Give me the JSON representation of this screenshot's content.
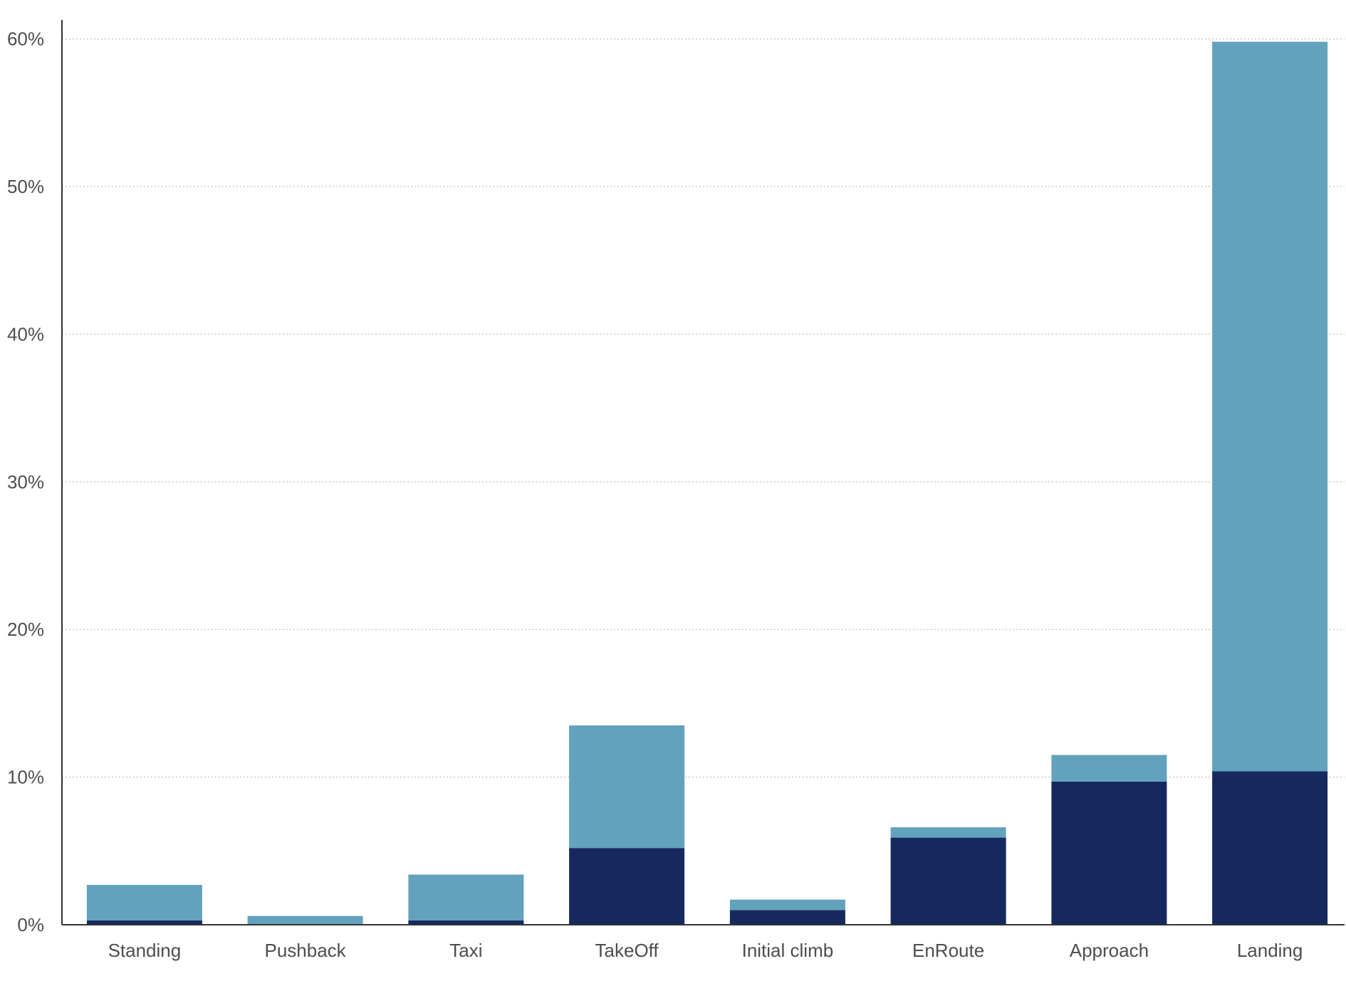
{
  "chart_data": {
    "type": "bar",
    "stacked": true,
    "title": "",
    "xlabel": "",
    "ylabel": "",
    "ylim": [
      0,
      62
    ],
    "y_ticks": [
      0,
      10,
      20,
      30,
      40,
      50,
      60
    ],
    "y_tick_labels": [
      "0%",
      "10%",
      "20%",
      "30%",
      "40%",
      "50%",
      "60%"
    ],
    "grid": true,
    "legend": "none",
    "categories": [
      "Standing",
      "Pushback",
      "Taxi",
      "TakeOff",
      "Initial climb",
      "EnRoute",
      "Approach",
      "Landing"
    ],
    "series": [
      {
        "color": "#16295f",
        "values": [
          0.3,
          0.0,
          0.3,
          5.2,
          1.0,
          5.9,
          9.7,
          10.4
        ]
      },
      {
        "color": "#62a2bd",
        "values": [
          2.4,
          0.6,
          3.1,
          8.3,
          0.7,
          0.7,
          1.8,
          49.4
        ]
      }
    ]
  }
}
